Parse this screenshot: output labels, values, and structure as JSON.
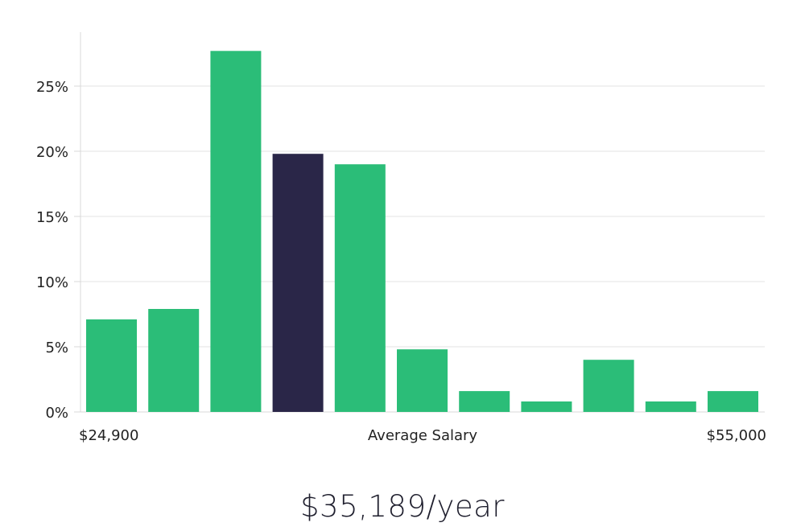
{
  "chart_data": {
    "type": "bar",
    "title": "",
    "ylabel": "",
    "xlabel": "Average Salary",
    "x_min_label": "$24,900",
    "x_max_label": "$55,000",
    "ylim": [
      0,
      29
    ],
    "yticks": [
      0,
      5,
      10,
      15,
      20,
      25
    ],
    "ytick_labels": [
      "0%",
      "5%",
      "10%",
      "15%",
      "20%",
      "25%"
    ],
    "values": [
      7.1,
      7.9,
      27.7,
      19.8,
      19.0,
      4.8,
      1.6,
      0.8,
      4.0,
      0.8,
      1.6
    ],
    "highlight_index": 3,
    "colors": {
      "bar": "#2bbd78",
      "highlight": "#2a2648",
      "grid": "#e3e3e3",
      "axis": "#d9d9d9"
    }
  },
  "summary": {
    "salary": "$35,189/year"
  }
}
